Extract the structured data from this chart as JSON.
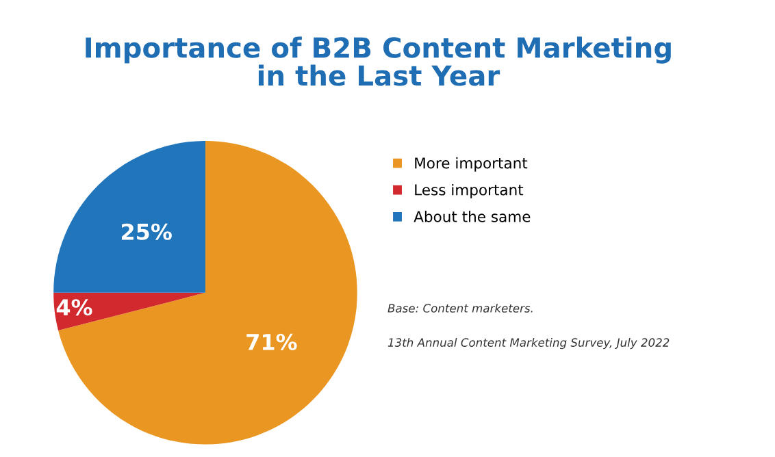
{
  "chart_data": {
    "type": "pie",
    "title": "Importance of B2B Content Marketing\nin the Last Year",
    "categories": [
      "More important",
      "Less important",
      "About the same"
    ],
    "values": [
      71,
      4,
      25
    ],
    "colors": [
      "#e99722",
      "#d2292f",
      "#2075bb"
    ],
    "value_labels": [
      "71%",
      "4%",
      "25%"
    ],
    "legend": "right",
    "annotations": [
      "Base: Content marketers.",
      "13th Annual Content Marketing Survey, July 2022"
    ]
  }
}
